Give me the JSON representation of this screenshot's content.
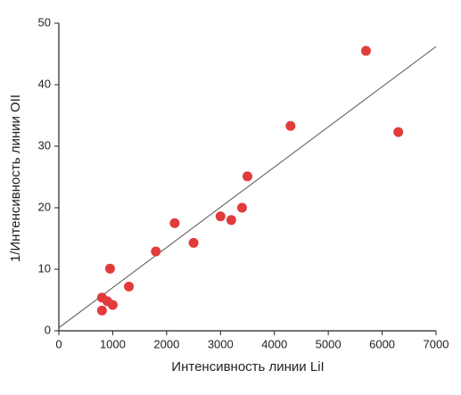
{
  "chart_data": {
    "type": "scatter",
    "xlabel": "Интенсивность линии LiI",
    "ylabel": "1/Интенсивность линии OII",
    "xlim": [
      0,
      7000
    ],
    "ylim": [
      0,
      50
    ],
    "xticks": [
      0,
      1000,
      2000,
      3000,
      4000,
      5000,
      6000,
      7000
    ],
    "yticks": [
      0,
      10,
      20,
      30,
      40,
      50
    ],
    "grid": false,
    "color": "#e23b3b",
    "x": [
      5700,
      6300,
      4300,
      3500,
      3400,
      3200,
      3000,
      2500,
      2150,
      1800,
      1300,
      950,
      800,
      900,
      1000,
      800
    ],
    "values": [
      45.5,
      32.3,
      33.3,
      25.1,
      20.0,
      18.0,
      18.6,
      14.3,
      17.5,
      12.9,
      7.2,
      10.1,
      5.4,
      4.8,
      4.2,
      3.3
    ],
    "fit_line": {
      "x": [
        0,
        7000
      ],
      "y": [
        0.5,
        46.2
      ],
      "color": "#555555"
    }
  }
}
